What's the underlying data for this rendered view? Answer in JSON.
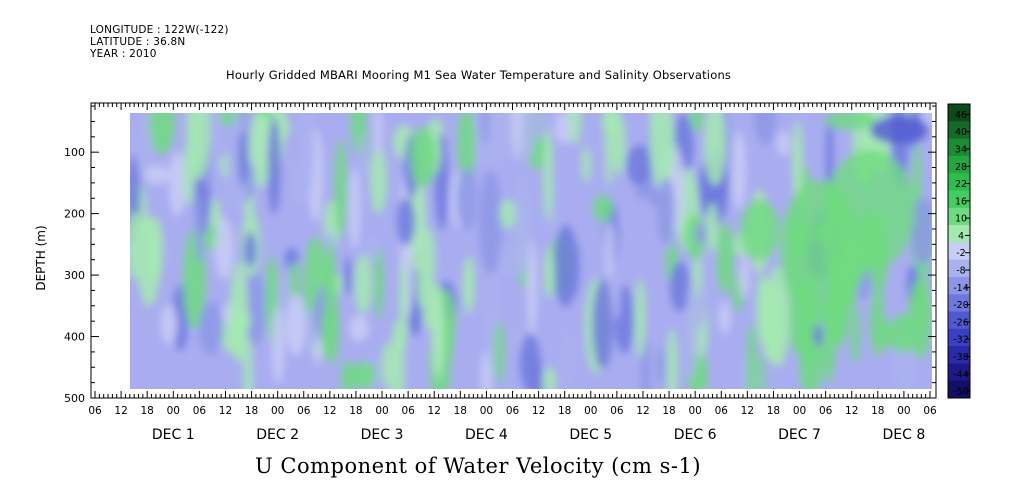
{
  "header": {
    "longitude": "LONGITUDE : 122W(-122)",
    "latitude": "LATITUDE : 36.8N",
    "year": "YEAR : 2010"
  },
  "chart_data": {
    "type": "heatmap",
    "title": "Hourly Gridded MBARI Mooring M1 Sea Water Temperature and Salinity Observations",
    "xlabel": "U Component of Water Velocity (cm s-1)",
    "ylabel": "DEPTH (m)",
    "ylim": [
      500,
      20
    ],
    "y_ticks": [
      100,
      200,
      300,
      400,
      500
    ],
    "x_hour_ticks": [
      "06",
      "12",
      "18",
      "00",
      "06",
      "12",
      "18",
      "00",
      "06",
      "12",
      "18",
      "00",
      "06",
      "12",
      "18",
      "00",
      "06",
      "12",
      "18",
      "00",
      "06",
      "12",
      "18",
      "00",
      "06",
      "12",
      "18",
      "00",
      "06",
      "12",
      "18",
      "00",
      "06"
    ],
    "x_day_labels": [
      {
        "label": "DEC  1",
        "tick_index": 3
      },
      {
        "label": "DEC  2",
        "tick_index": 7
      },
      {
        "label": "DEC  3",
        "tick_index": 11
      },
      {
        "label": "DEC  4",
        "tick_index": 15
      },
      {
        "label": "DEC  5",
        "tick_index": 19
      },
      {
        "label": "DEC  6",
        "tick_index": 23
      },
      {
        "label": "DEC  7",
        "tick_index": 27
      },
      {
        "label": "DEC  8",
        "tick_index": 31
      }
    ],
    "colorbar": {
      "levels": [
        -50,
        -44,
        -38,
        -32,
        -26,
        -20,
        -14,
        -8,
        -2,
        4,
        10,
        16,
        22,
        28,
        34,
        40,
        46
      ],
      "labels": [
        "46",
        "40",
        "34",
        "28",
        "22",
        "16",
        "10",
        "4",
        "-2",
        "-8",
        "-14",
        "-20",
        "-26",
        "-32",
        "-38",
        "-44",
        "-50"
      ],
      "colors_top_to_bottom": [
        "#0d4a1a",
        "#136b27",
        "#1a8c33",
        "#22a83f",
        "#2dbd4c",
        "#45cc5e",
        "#6fdb80",
        "#a4eab0",
        "#c8cdf5",
        "#aab2ee",
        "#8d96e6",
        "#6f79dd",
        "#5059d2",
        "#3a3fc4",
        "#2a2aa8",
        "#1c1a88",
        "#120f66"
      ]
    },
    "grid": false,
    "legend": "colorbar-right"
  }
}
